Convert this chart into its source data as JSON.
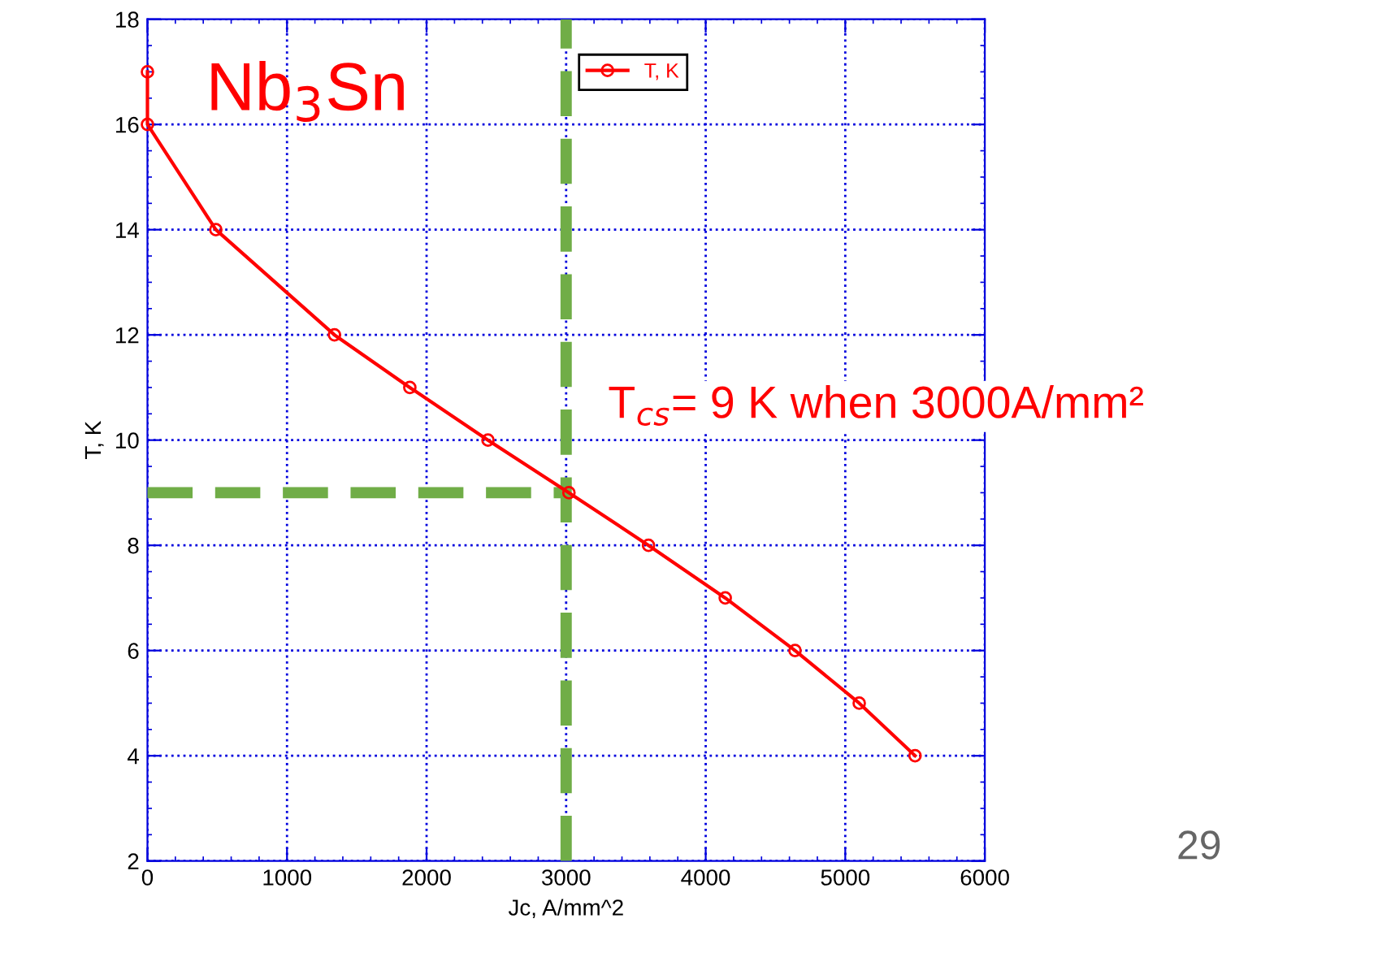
{
  "chart_data": {
    "type": "line",
    "xlabel": "Jc, A/mm^2",
    "ylabel": "T, K",
    "xlim": [
      0,
      6000
    ],
    "xticks": [
      0,
      1000,
      2000,
      3000,
      4000,
      5000,
      6000
    ],
    "ylim": [
      2,
      18
    ],
    "yticks": [
      2,
      4,
      6,
      8,
      10,
      12,
      14,
      16,
      18
    ],
    "grid": true,
    "legend": "top",
    "marker": "circle",
    "line_style": "solid",
    "series": [
      {
        "name": "T, K",
        "color": "#ff0000",
        "x": [
          0,
          0,
          490,
          1340,
          1880,
          2440,
          3020,
          3590,
          4140,
          4640,
          5100,
          5500
        ],
        "values": [
          17,
          16,
          14,
          12,
          11,
          10,
          9,
          8,
          7,
          6,
          5,
          4
        ]
      },
      {
        "type": "line",
        "color": "#70ad47",
        "line_style": "dashed",
        "marker": "none",
        "x": [
          0,
          3000
        ],
        "values": [
          9,
          9
        ]
      }
    ],
    "ref_lines": [
      {
        "axis": "x",
        "value": 3000,
        "color": "#70ad47",
        "line_style": "dashed"
      }
    ],
    "annotations": [
      "Nb$_{3}$Sn",
      "T$_{cs}$= 9 K when 3000A/mm²",
      "29"
    ]
  }
}
